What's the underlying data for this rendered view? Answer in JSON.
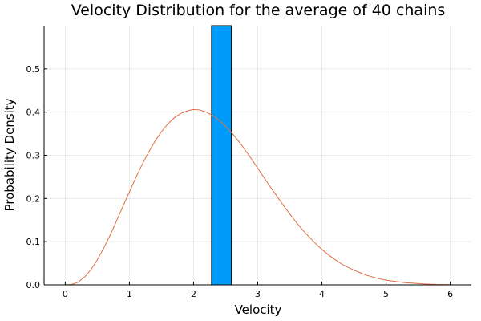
{
  "chart_data": {
    "type": "bar",
    "title": "Velocity Distribution for the average of 40 chains",
    "xlabel": "Velocity",
    "ylabel": "Probability Density",
    "xlim": [
      -0.33,
      6.33
    ],
    "ylim": [
      0,
      0.6
    ],
    "xticks": [
      0,
      1,
      2,
      3,
      4,
      5,
      6
    ],
    "yticks": [
      0.0,
      0.1,
      0.2,
      0.3,
      0.4,
      0.5
    ],
    "ytick_labels": [
      "0.0",
      "0.1",
      "0.2",
      "0.3",
      "0.4",
      "0.5"
    ],
    "grid": true,
    "legend": "none",
    "histogram": {
      "color": "#009af9",
      "bins": [
        {
          "x0": 2.28,
          "x1": 2.59,
          "value": 0.6
        }
      ]
    },
    "curve": {
      "type": "line",
      "color": "#e26f46",
      "x": [
        0.0,
        0.1,
        0.2,
        0.3,
        0.4,
        0.5,
        0.6,
        0.7,
        0.8,
        0.9,
        1.0,
        1.1,
        1.2,
        1.3,
        1.4,
        1.5,
        1.6,
        1.7,
        1.8,
        1.9,
        2.0,
        2.1,
        2.2,
        2.3,
        2.4,
        2.5,
        2.6,
        2.7,
        2.8,
        2.9,
        3.0,
        3.1,
        3.2,
        3.3,
        3.4,
        3.5,
        3.6,
        3.7,
        3.8,
        3.9,
        4.0,
        4.1,
        4.2,
        4.3,
        4.4,
        4.5,
        4.6,
        4.7,
        4.8,
        4.9,
        5.0,
        5.1,
        5.2,
        5.3,
        5.4,
        5.5,
        5.6,
        5.7,
        5.8,
        5.9,
        6.0
      ],
      "y": [
        0.0,
        0.001,
        0.006,
        0.018,
        0.035,
        0.058,
        0.085,
        0.115,
        0.148,
        0.182,
        0.215,
        0.248,
        0.279,
        0.307,
        0.333,
        0.355,
        0.373,
        0.387,
        0.397,
        0.403,
        0.406,
        0.405,
        0.4,
        0.392,
        0.381,
        0.367,
        0.351,
        0.333,
        0.313,
        0.292,
        0.27,
        0.248,
        0.226,
        0.205,
        0.184,
        0.164,
        0.145,
        0.127,
        0.111,
        0.096,
        0.082,
        0.07,
        0.059,
        0.049,
        0.041,
        0.034,
        0.028,
        0.022,
        0.018,
        0.014,
        0.011,
        0.009,
        0.007,
        0.005,
        0.004,
        0.003,
        0.002,
        0.0015,
        0.001,
        0.0007,
        0.0005
      ]
    }
  }
}
